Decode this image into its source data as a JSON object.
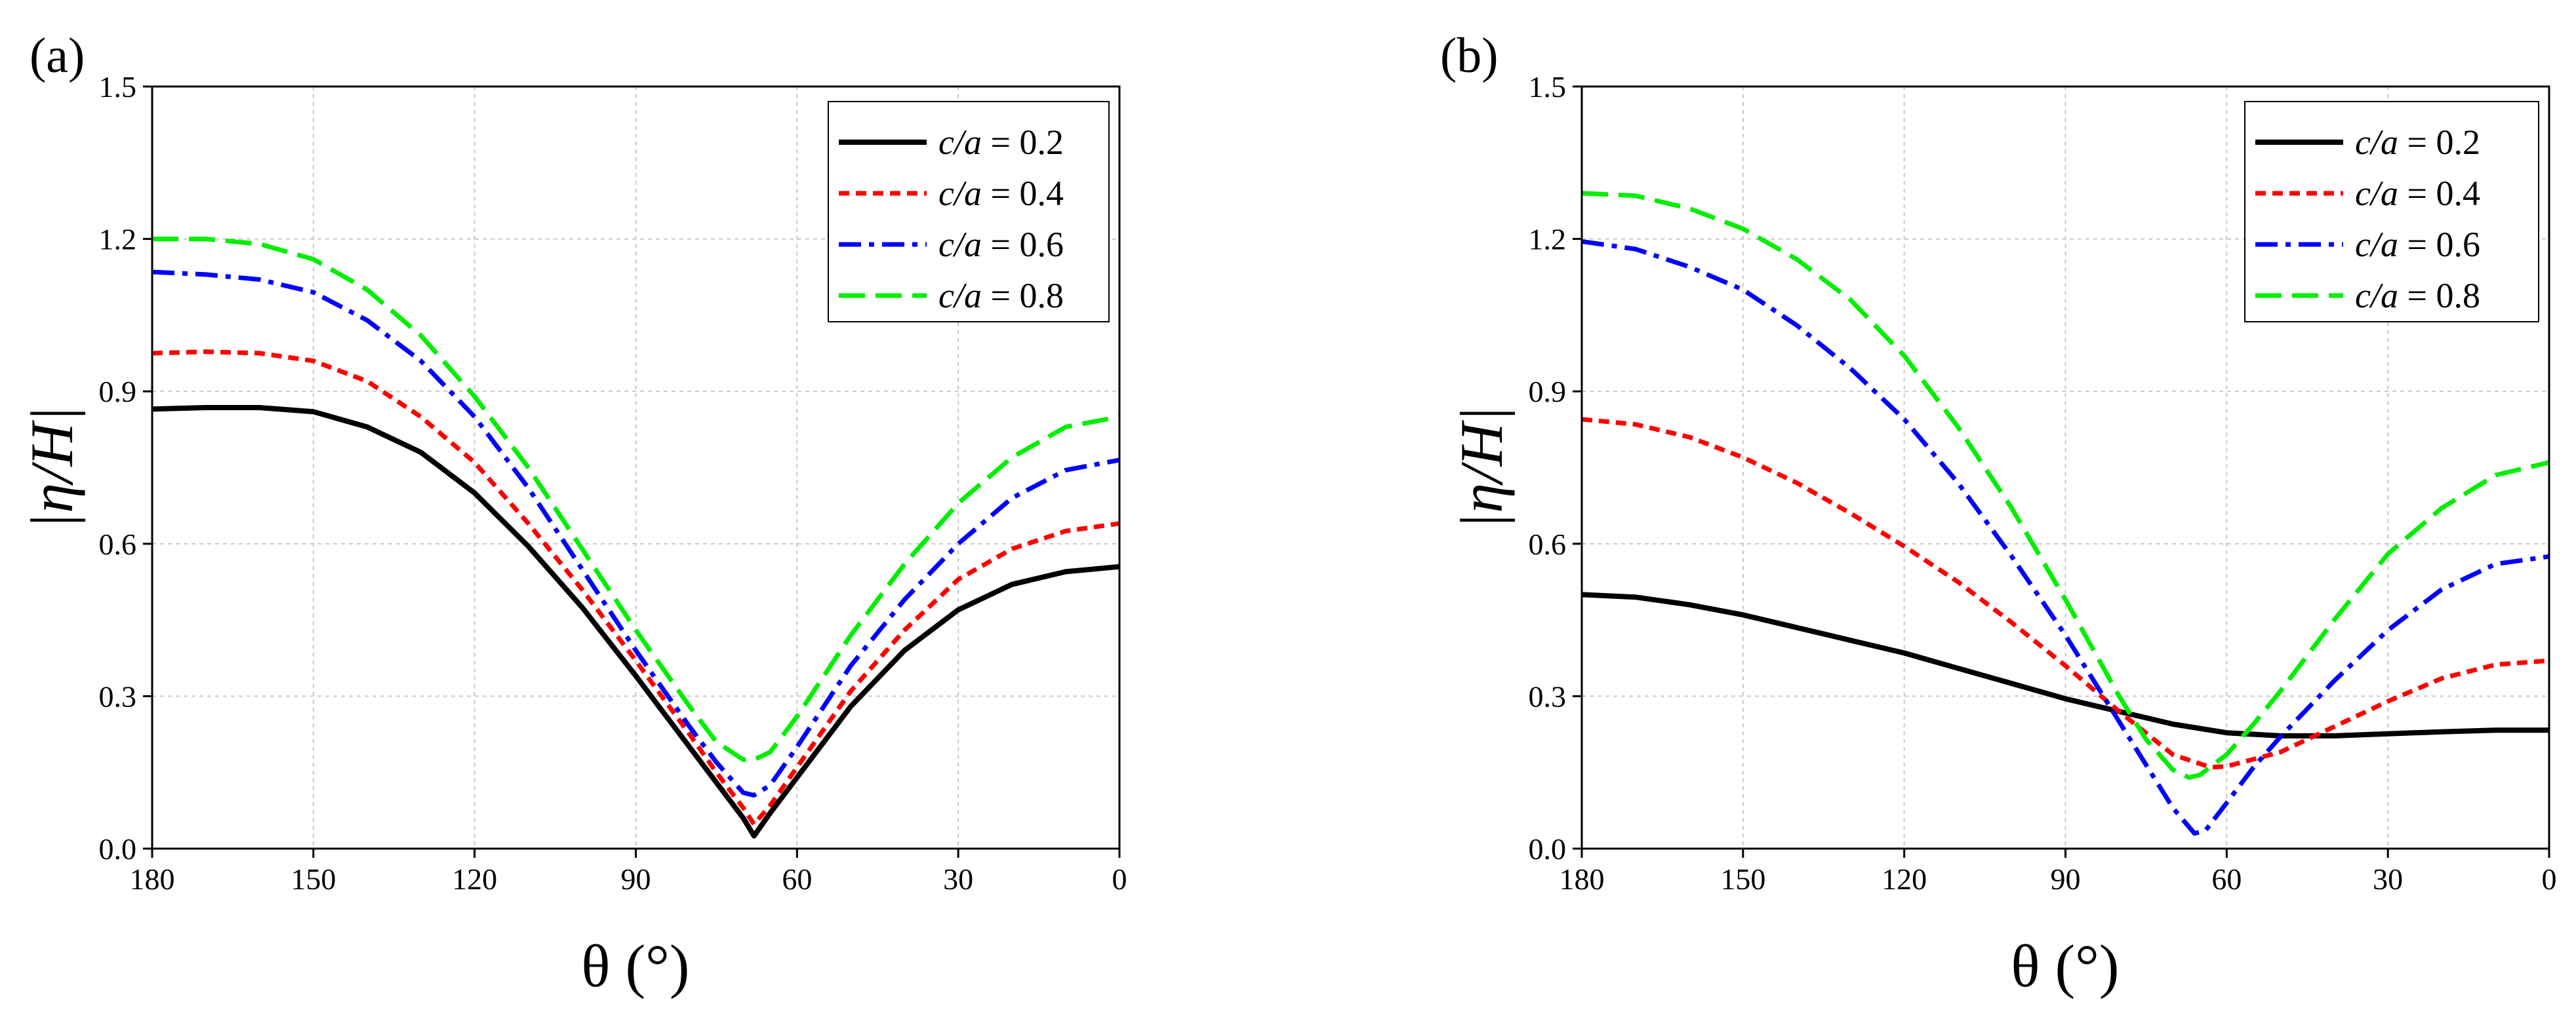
{
  "chart_data": [
    {
      "type": "line",
      "panel_label": "(a)",
      "xlabel": "θ (°)",
      "ylabel": "|η/H|",
      "xlim": [
        180,
        0
      ],
      "ylim": [
        0,
        1.5
      ],
      "xticks": [
        "180",
        "150",
        "120",
        "90",
        "60",
        "30",
        "0"
      ],
      "xtick_values": [
        180,
        150,
        120,
        90,
        60,
        30,
        0
      ],
      "yticks": [
        "0.0",
        "0.3",
        "0.6",
        "0.9",
        "1.2",
        "1.5"
      ],
      "ytick_values": [
        0,
        0.3,
        0.6,
        0.9,
        1.2,
        1.5
      ],
      "grid": true,
      "legend_position": "top-right",
      "series": [
        {
          "name_italic": "c/a",
          "name_value": " = 0.2",
          "color": "#000000",
          "dash": "solid",
          "x": [
            180,
            170,
            160,
            150,
            140,
            130,
            120,
            110,
            100,
            90,
            80,
            75,
            70,
            68,
            65,
            60,
            50,
            40,
            30,
            20,
            10,
            0
          ],
          "y": [
            0.865,
            0.868,
            0.868,
            0.86,
            0.83,
            0.78,
            0.7,
            0.595,
            0.475,
            0.34,
            0.2,
            0.13,
            0.06,
            0.025,
            0.07,
            0.14,
            0.28,
            0.39,
            0.47,
            0.52,
            0.545,
            0.555
          ]
        },
        {
          "name_italic": "c/a",
          "name_value": " = 0.4",
          "color": "#ff0000",
          "dash": "short-dash",
          "x": [
            180,
            170,
            160,
            150,
            140,
            130,
            120,
            110,
            100,
            90,
            80,
            75,
            70,
            68,
            65,
            60,
            50,
            40,
            30,
            20,
            10,
            0
          ],
          "y": [
            0.975,
            0.978,
            0.975,
            0.96,
            0.92,
            0.85,
            0.76,
            0.64,
            0.51,
            0.37,
            0.225,
            0.15,
            0.08,
            0.048,
            0.085,
            0.16,
            0.31,
            0.43,
            0.53,
            0.59,
            0.625,
            0.64
          ]
        },
        {
          "name_italic": "c/a",
          "name_value": " = 0.6",
          "color": "#0000ff",
          "dash": "dash-dot",
          "x": [
            180,
            170,
            160,
            150,
            140,
            130,
            120,
            110,
            100,
            90,
            80,
            75,
            70,
            68,
            65,
            60,
            50,
            40,
            30,
            20,
            10,
            0
          ],
          "y": [
            1.135,
            1.13,
            1.12,
            1.095,
            1.04,
            0.96,
            0.85,
            0.71,
            0.55,
            0.39,
            0.24,
            0.17,
            0.11,
            0.105,
            0.125,
            0.2,
            0.36,
            0.49,
            0.6,
            0.69,
            0.745,
            0.765
          ]
        },
        {
          "name_italic": "c/a",
          "name_value": " = 0.8",
          "color": "#00ee00",
          "dash": "long-dash",
          "x": [
            180,
            170,
            160,
            150,
            140,
            130,
            120,
            110,
            100,
            90,
            80,
            75,
            70,
            68,
            65,
            60,
            50,
            40,
            30,
            20,
            10,
            0
          ],
          "y": [
            1.2,
            1.2,
            1.19,
            1.16,
            1.1,
            1.01,
            0.89,
            0.75,
            0.59,
            0.43,
            0.28,
            0.21,
            0.175,
            0.175,
            0.19,
            0.26,
            0.42,
            0.56,
            0.68,
            0.77,
            0.83,
            0.85
          ]
        }
      ]
    },
    {
      "type": "line",
      "panel_label": "(b)",
      "xlabel": "θ (°)",
      "ylabel": "|η/H|",
      "xlim": [
        180,
        0
      ],
      "ylim": [
        0,
        1.5
      ],
      "xticks": [
        "180",
        "150",
        "120",
        "90",
        "60",
        "30",
        "0"
      ],
      "xtick_values": [
        180,
        150,
        120,
        90,
        60,
        30,
        0
      ],
      "yticks": [
        "0.0",
        "0.3",
        "0.6",
        "0.9",
        "1.2",
        "1.5"
      ],
      "ytick_values": [
        0,
        0.3,
        0.6,
        0.9,
        1.2,
        1.5
      ],
      "grid": true,
      "legend_position": "top-right",
      "series": [
        {
          "name_italic": "c/a",
          "name_value": " = 0.2",
          "color": "#000000",
          "dash": "solid",
          "x": [
            180,
            170,
            160,
            150,
            140,
            130,
            120,
            110,
            100,
            90,
            80,
            70,
            60,
            50,
            40,
            30,
            20,
            10,
            0
          ],
          "y": [
            0.5,
            0.495,
            0.48,
            0.46,
            0.435,
            0.41,
            0.385,
            0.355,
            0.325,
            0.295,
            0.27,
            0.245,
            0.228,
            0.222,
            0.222,
            0.226,
            0.23,
            0.233,
            0.233
          ]
        },
        {
          "name_italic": "c/a",
          "name_value": " = 0.4",
          "color": "#ff0000",
          "dash": "short-dash",
          "x": [
            180,
            170,
            160,
            150,
            140,
            130,
            120,
            110,
            100,
            90,
            80,
            70,
            63,
            60,
            50,
            40,
            30,
            20,
            10,
            0
          ],
          "y": [
            0.845,
            0.835,
            0.81,
            0.77,
            0.72,
            0.66,
            0.595,
            0.525,
            0.445,
            0.36,
            0.27,
            0.185,
            0.16,
            0.162,
            0.19,
            0.24,
            0.29,
            0.335,
            0.362,
            0.37
          ]
        },
        {
          "name_italic": "c/a",
          "name_value": " = 0.6",
          "color": "#0000ff",
          "dash": "dash-dot",
          "x": [
            180,
            170,
            160,
            150,
            140,
            130,
            120,
            110,
            100,
            90,
            80,
            75,
            70,
            66,
            64,
            60,
            55,
            50,
            40,
            30,
            20,
            10,
            0
          ],
          "y": [
            1.195,
            1.18,
            1.145,
            1.1,
            1.03,
            0.945,
            0.845,
            0.72,
            0.575,
            0.42,
            0.25,
            0.165,
            0.08,
            0.03,
            0.035,
            0.09,
            0.16,
            0.22,
            0.33,
            0.43,
            0.51,
            0.56,
            0.575
          ]
        },
        {
          "name_italic": "c/a",
          "name_value": " = 0.8",
          "color": "#00ee00",
          "dash": "long-dash",
          "x": [
            180,
            170,
            160,
            150,
            140,
            130,
            120,
            110,
            100,
            90,
            80,
            75,
            70,
            67,
            65,
            60,
            55,
            50,
            40,
            30,
            20,
            10,
            0
          ],
          "y": [
            1.29,
            1.285,
            1.26,
            1.22,
            1.16,
            1.08,
            0.97,
            0.83,
            0.67,
            0.49,
            0.3,
            0.215,
            0.155,
            0.14,
            0.145,
            0.185,
            0.245,
            0.31,
            0.45,
            0.58,
            0.67,
            0.735,
            0.76
          ]
        }
      ]
    }
  ]
}
